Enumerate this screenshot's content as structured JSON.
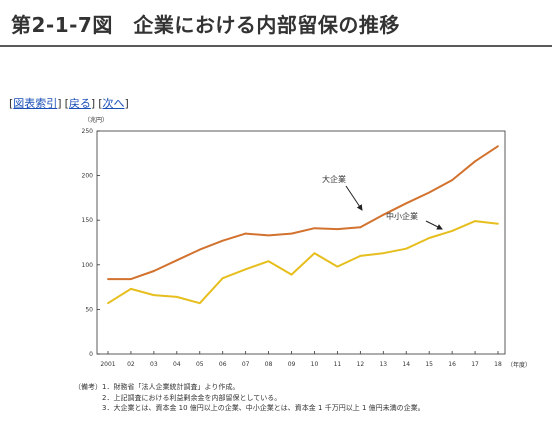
{
  "page": {
    "title": "第2-1-7図　企業における内部留保の推移"
  },
  "nav": {
    "links": [
      {
        "name": "index-link",
        "label": "図表索引"
      },
      {
        "name": "back-link",
        "label": "戻る"
      },
      {
        "name": "next-link",
        "label": "次へ"
      }
    ]
  },
  "chart_data": {
    "type": "line",
    "title": "",
    "ylabel": "（兆円）",
    "xlabel": "（年度）",
    "ylim": [
      0,
      250
    ],
    "yticks": [
      0,
      50,
      100,
      150,
      200,
      250
    ],
    "categories": [
      "2001",
      "02",
      "03",
      "04",
      "05",
      "06",
      "07",
      "08",
      "09",
      "10",
      "11",
      "12",
      "13",
      "14",
      "15",
      "16",
      "17",
      "18"
    ],
    "grid": false,
    "series": [
      {
        "name": "大企業",
        "color": "#d2722e",
        "values": [
          84,
          84,
          93,
          105,
          117,
          127,
          135,
          133,
          135,
          141,
          140,
          142,
          156,
          169,
          181,
          195,
          216,
          233
        ]
      },
      {
        "name": "中小企業",
        "color": "#e6be1e",
        "values": [
          57,
          73,
          66,
          64,
          57,
          85,
          95,
          104,
          89,
          113,
          98,
          110,
          113,
          118,
          130,
          138,
          149,
          146
        ]
      }
    ]
  },
  "notes": {
    "label": "（備考）",
    "items": [
      "1．財務省「法人企業統計調査」より作成。",
      "2．上記調査における利益剰余金を内部留保としている。",
      "3．大企業とは、資本金 10 億円以上の企業、中小企業とは、資本金 1 千万円以上 1 億円未満の企業。"
    ]
  }
}
